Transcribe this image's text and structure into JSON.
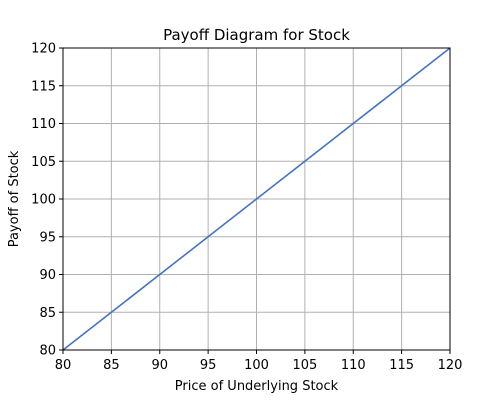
{
  "chart_data": {
    "type": "line",
    "title": "Payoff Diagram for Stock",
    "xlabel": "Price of Underlying Stock",
    "ylabel": "Payoff of Stock",
    "xlim": [
      80,
      120
    ],
    "ylim": [
      80,
      120
    ],
    "x_ticks": [
      80,
      85,
      90,
      95,
      100,
      105,
      110,
      115,
      120
    ],
    "y_ticks": [
      80,
      85,
      90,
      95,
      100,
      105,
      110,
      115,
      120
    ],
    "grid": true,
    "series": [
      {
        "color": "#4472c4",
        "x": [
          80,
          85,
          90,
          95,
          100,
          105,
          110,
          115,
          120
        ],
        "y": [
          80,
          85,
          90,
          95,
          100,
          105,
          110,
          115,
          120
        ]
      }
    ]
  }
}
